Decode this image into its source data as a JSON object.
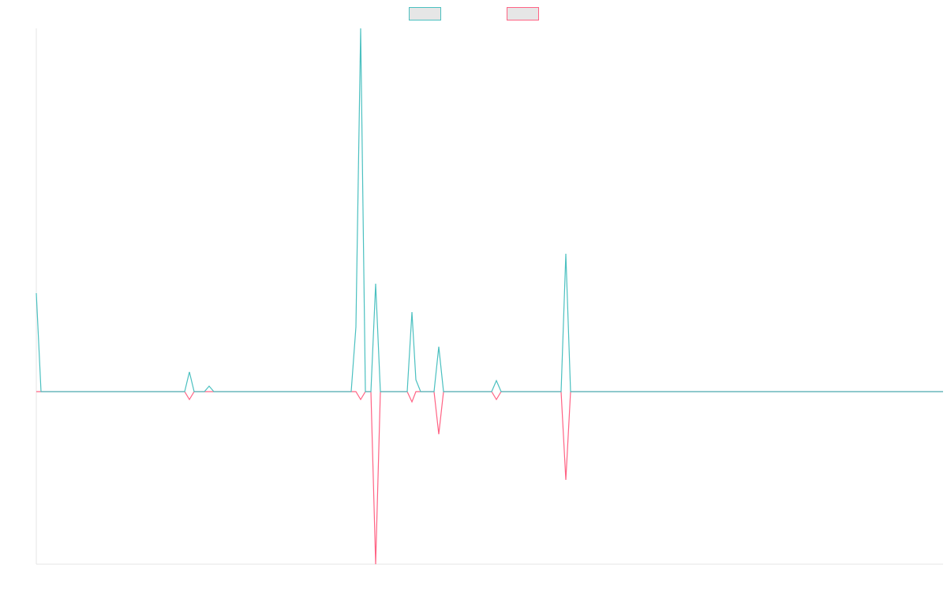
{
  "chart_data": {
    "type": "line",
    "legend": "top",
    "x": [
      0,
      6,
      188,
      194,
      200,
      213,
      219,
      225,
      399,
      405,
      411,
      417,
      424,
      430,
      436,
      470,
      476,
      481,
      487,
      504,
      510,
      516,
      577,
      583,
      589,
      665,
      671,
      677,
      1149
    ],
    "series": [
      {
        "color": "#ff6384",
        "values": [
          0,
          0,
          0,
          -10,
          0,
          0,
          0,
          0,
          0,
          0,
          -10,
          0,
          0,
          -219,
          0,
          0,
          -13,
          0,
          0,
          0,
          -54,
          0,
          0,
          -10,
          0,
          0,
          -112,
          0,
          0
        ]
      },
      {
        "color": "#4bc0c0",
        "values": [
          125,
          0,
          0,
          25,
          0,
          0,
          7,
          0,
          0,
          82,
          461,
          0,
          0,
          137,
          0,
          0,
          101,
          15,
          0,
          0,
          57,
          0,
          0,
          14,
          0,
          0,
          175,
          0,
          0
        ]
      }
    ],
    "xlim": [
      0,
      1149
    ],
    "ylim": [
      -219,
      461
    ]
  }
}
